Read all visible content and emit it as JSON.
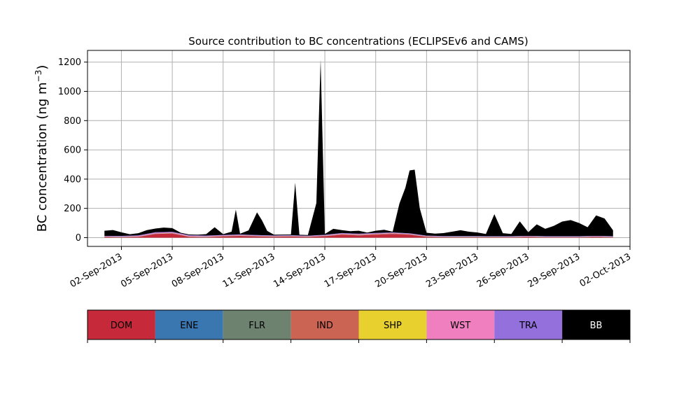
{
  "chart_data": {
    "type": "area",
    "title": "Source contribution to BC concentrations (ECLIPSEv6 and CAMS)",
    "xlabel": "",
    "ylabel": "BC concentration (ng m⁻³)",
    "ylabel_base": "BC concentration (ng m",
    "ylabel_exp": "−3",
    "ylabel_close": ")",
    "grid": true,
    "stacked": true,
    "x_range": [
      "2013-08-31",
      "2013-10-02"
    ],
    "ylim": [
      -60,
      1280
    ],
    "xticks": [
      "02-Sep-2013",
      "05-Sep-2013",
      "08-Sep-2013",
      "11-Sep-2013",
      "14-Sep-2013",
      "17-Sep-2013",
      "20-Sep-2013",
      "23-Sep-2013",
      "26-Sep-2013",
      "29-Sep-2013",
      "02-Oct-2013"
    ],
    "xtick_dates": [
      "2013-09-02",
      "2013-09-05",
      "2013-09-08",
      "2013-09-11",
      "2013-09-14",
      "2013-09-17",
      "2013-09-20",
      "2013-09-23",
      "2013-09-26",
      "2013-09-29",
      "2013-10-02"
    ],
    "yticks": [
      0,
      200,
      400,
      600,
      800,
      1000,
      1200
    ],
    "legend_placement": "below chart, horizontal color bar",
    "legend_entries": [
      {
        "name": "DOM",
        "color": "#c62a3a",
        "text_color": "#000000"
      },
      {
        "name": "ENE",
        "color": "#3a77b0",
        "text_color": "#000000"
      },
      {
        "name": "FLR",
        "color": "#6e8270",
        "text_color": "#000000"
      },
      {
        "name": "IND",
        "color": "#cb6453",
        "text_color": "#000000"
      },
      {
        "name": "SHP",
        "color": "#e8d02e",
        "text_color": "#000000"
      },
      {
        "name": "WST",
        "color": "#f07fbf",
        "text_color": "#000000"
      },
      {
        "name": "TRA",
        "color": "#9370db",
        "text_color": "#000000"
      },
      {
        "name": "BB",
        "color": "#000000",
        "text_color": "#ffffff"
      }
    ],
    "series": [
      {
        "name": "DOM",
        "color": "#c62a3a",
        "points": [
          [
            "2013-09-01",
            5
          ],
          [
            "2013-09-02",
            3
          ],
          [
            "2013-09-03",
            5
          ],
          [
            "2013-09-04",
            25
          ],
          [
            "2013-09-05",
            28
          ],
          [
            "2013-09-06",
            5
          ],
          [
            "2013-09-07",
            3
          ],
          [
            "2013-09-08",
            8
          ],
          [
            "2013-09-09",
            12
          ],
          [
            "2013-09-10",
            8
          ],
          [
            "2013-09-11",
            6
          ],
          [
            "2013-09-12",
            8
          ],
          [
            "2013-09-13",
            5
          ],
          [
            "2013-09-14",
            10
          ],
          [
            "2013-09-15",
            20
          ],
          [
            "2013-09-16",
            15
          ],
          [
            "2013-09-17",
            20
          ],
          [
            "2013-09-18",
            25
          ],
          [
            "2013-09-19",
            20
          ],
          [
            "2013-09-20",
            5
          ],
          [
            "2013-09-21",
            3
          ],
          [
            "2013-09-22",
            3
          ],
          [
            "2013-09-23",
            3
          ],
          [
            "2013-09-24",
            3
          ],
          [
            "2013-09-25",
            3
          ],
          [
            "2013-09-26",
            5
          ],
          [
            "2013-09-27",
            3
          ],
          [
            "2013-09-28",
            3
          ],
          [
            "2013-09-29",
            3
          ],
          [
            "2013-09-30",
            5
          ],
          [
            "2013-10-01",
            3
          ]
        ]
      },
      {
        "name": "ENE",
        "color": "#3a77b0",
        "points": [
          [
            "2013-09-01",
            1
          ],
          [
            "2013-09-05",
            1
          ],
          [
            "2013-09-09",
            1
          ],
          [
            "2013-09-13",
            1
          ],
          [
            "2013-09-17",
            1
          ],
          [
            "2013-09-21",
            1
          ],
          [
            "2013-09-25",
            1
          ],
          [
            "2013-09-29",
            1
          ],
          [
            "2013-10-01",
            1
          ]
        ]
      },
      {
        "name": "FLR",
        "color": "#6e8270",
        "points": [
          [
            "2013-09-01",
            0.5
          ],
          [
            "2013-09-09",
            0.5
          ],
          [
            "2013-09-17",
            0.5
          ],
          [
            "2013-09-25",
            0.5
          ],
          [
            "2013-10-01",
            0.5
          ]
        ]
      },
      {
        "name": "IND",
        "color": "#cb6453",
        "points": [
          [
            "2013-09-01",
            1
          ],
          [
            "2013-09-05",
            2
          ],
          [
            "2013-09-09",
            2
          ],
          [
            "2013-09-13",
            1
          ],
          [
            "2013-09-16",
            3
          ],
          [
            "2013-09-17",
            3
          ],
          [
            "2013-09-19",
            2
          ],
          [
            "2013-09-25",
            1
          ],
          [
            "2013-10-01",
            1
          ]
        ]
      },
      {
        "name": "SHP",
        "color": "#e8d02e",
        "points": [
          [
            "2013-09-01",
            0.5
          ],
          [
            "2013-09-09",
            0.5
          ],
          [
            "2013-09-17",
            0.5
          ],
          [
            "2013-09-25",
            0.5
          ],
          [
            "2013-10-01",
            0.5
          ]
        ]
      },
      {
        "name": "WST",
        "color": "#f07fbf",
        "points": [
          [
            "2013-09-01",
            1
          ],
          [
            "2013-09-04",
            4
          ],
          [
            "2013-09-05",
            4
          ],
          [
            "2013-09-09",
            2
          ],
          [
            "2013-09-13",
            2
          ],
          [
            "2013-09-15",
            3
          ],
          [
            "2013-09-17",
            3
          ],
          [
            "2013-09-21",
            1
          ],
          [
            "2013-09-25",
            1
          ],
          [
            "2013-10-01",
            1
          ]
        ]
      },
      {
        "name": "TRA",
        "color": "#9370db",
        "points": [
          [
            "2013-09-01",
            3
          ],
          [
            "2013-09-04",
            4
          ],
          [
            "2013-09-05",
            4
          ],
          [
            "2013-09-09",
            4
          ],
          [
            "2013-09-13",
            3
          ],
          [
            "2013-09-15",
            4
          ],
          [
            "2013-09-17",
            4
          ],
          [
            "2013-09-21",
            3
          ],
          [
            "2013-09-25",
            3
          ],
          [
            "2013-10-01",
            3
          ]
        ]
      },
      {
        "name": "BB",
        "color": "#000000",
        "points": [
          [
            "2013-09-01",
            35
          ],
          [
            "2013-09-01.5",
            40
          ],
          [
            "2013-09-02",
            25
          ],
          [
            "2013-09-02.5",
            10
          ],
          [
            "2013-09-03",
            15
          ],
          [
            "2013-09-03.5",
            25
          ],
          [
            "2013-09-04",
            25
          ],
          [
            "2013-09-04.5",
            30
          ],
          [
            "2013-09-05",
            25
          ],
          [
            "2013-09-05.5",
            5
          ],
          [
            "2013-09-06",
            5
          ],
          [
            "2013-09-06.5",
            5
          ],
          [
            "2013-09-07",
            10
          ],
          [
            "2013-09-07.5",
            55
          ],
          [
            "2013-09-08",
            5
          ],
          [
            "2013-09-08.5",
            20
          ],
          [
            "2013-09-08.75",
            170
          ],
          [
            "2013-09-09",
            5
          ],
          [
            "2013-09-09.5",
            30
          ],
          [
            "2013-09-10",
            155
          ],
          [
            "2013-09-10.3",
            100
          ],
          [
            "2013-09-10.6",
            30
          ],
          [
            "2013-09-11",
            5
          ],
          [
            "2013-09-11.5",
            5
          ],
          [
            "2013-09-12",
            5
          ],
          [
            "2013-09-12.25",
            360
          ],
          [
            "2013-09-12.5",
            5
          ],
          [
            "2013-09-13",
            5
          ],
          [
            "2013-09-13.5",
            220
          ],
          [
            "2013-09-13.75",
            1200
          ],
          [
            "2013-09-14",
            5
          ],
          [
            "2013-09-14.5",
            35
          ],
          [
            "2013-09-15",
            20
          ],
          [
            "2013-09-15.5",
            15
          ],
          [
            "2013-09-16",
            20
          ],
          [
            "2013-09-16.5",
            5
          ],
          [
            "2013-09-17",
            15
          ],
          [
            "2013-09-17.5",
            20
          ],
          [
            "2013-09-18",
            5
          ],
          [
            "2013-09-18.4",
            200
          ],
          [
            "2013-09-18.75",
            310
          ],
          [
            "2013-09-19",
            430
          ],
          [
            "2013-09-19.3",
            440
          ],
          [
            "2013-09-19.6",
            180
          ],
          [
            "2013-09-20",
            20
          ],
          [
            "2013-09-20.5",
            15
          ],
          [
            "2013-09-21",
            20
          ],
          [
            "2013-09-21.5",
            30
          ],
          [
            "2013-09-22",
            40
          ],
          [
            "2013-09-22.5",
            30
          ],
          [
            "2013-09-23",
            25
          ],
          [
            "2013-09-23.5",
            15
          ],
          [
            "2013-09-24",
            150
          ],
          [
            "2013-09-24.5",
            20
          ],
          [
            "2013-09-25",
            15
          ],
          [
            "2013-09-25.5",
            100
          ],
          [
            "2013-09-26",
            25
          ],
          [
            "2013-09-26.5",
            80
          ],
          [
            "2013-09-27",
            50
          ],
          [
            "2013-09-27.5",
            70
          ],
          [
            "2013-09-28",
            100
          ],
          [
            "2013-09-28.5",
            110
          ],
          [
            "2013-09-29",
            90
          ],
          [
            "2013-09-29.5",
            60
          ],
          [
            "2013-09-30",
            140
          ],
          [
            "2013-09-30.5",
            120
          ],
          [
            "2013-10-01",
            40
          ]
        ]
      }
    ]
  }
}
